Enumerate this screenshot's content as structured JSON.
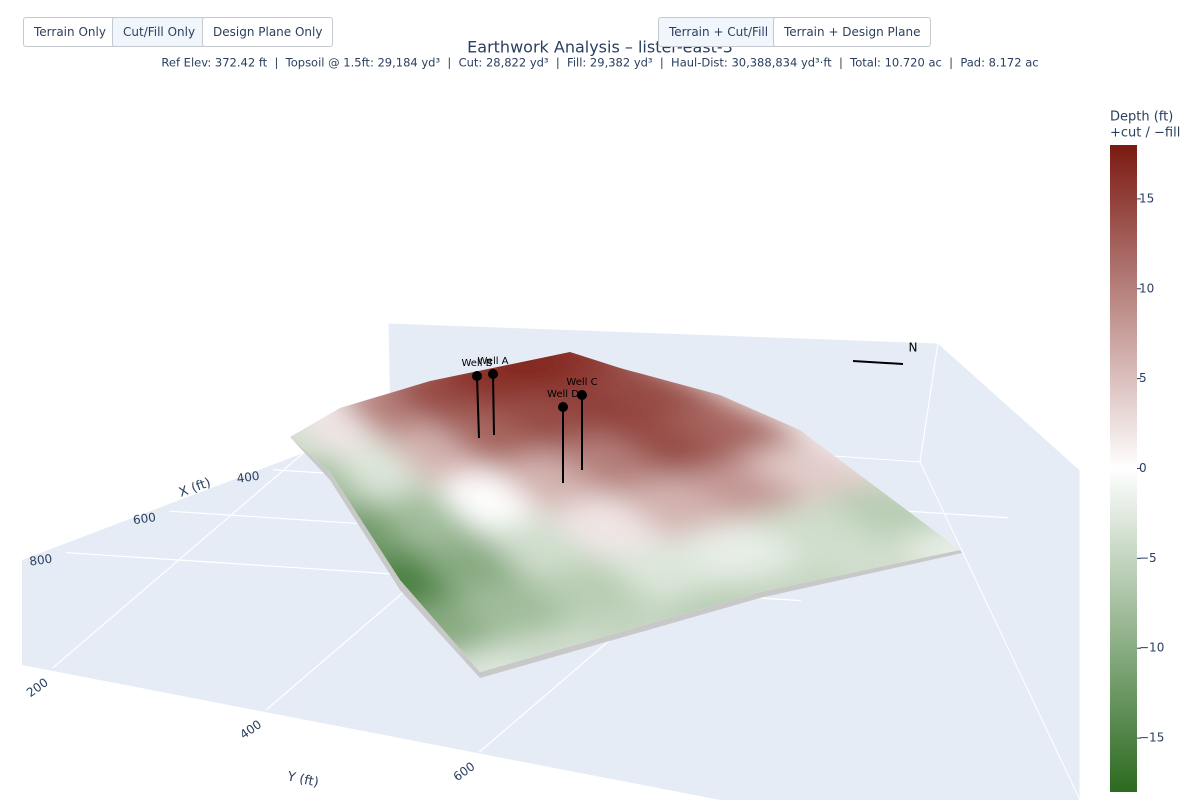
{
  "buttons": [
    {
      "label": "Terrain Only",
      "active": false
    },
    {
      "label": "Cut/Fill Only",
      "active": true
    },
    {
      "label": "Design Plane Only",
      "active": false
    },
    {
      "label": "Terrain + Cut/Fill",
      "active": true
    },
    {
      "label": "Terrain + Design Plane",
      "active": false
    }
  ],
  "chart_data": {
    "type": "surface",
    "title": "Earthwork Analysis – lister-east-3",
    "subtitle": "Ref Elev: 372.42 ft  |  Topsoil @ 1.5ft: 29,184 yd³  |  Cut: 28,822 yd³  |  Fill: 29,382 yd³  |  Haul-Dist: 30,388,834 yd³·ft  |  Total: 10.720 ac  |  Pad: 8.172 ac",
    "z": [
      [
        -4,
        2,
        10,
        14,
        16,
        17,
        16
      ],
      [
        -8,
        -3,
        6,
        12,
        14,
        15,
        14
      ],
      [
        -12,
        -8,
        0,
        6,
        10,
        14,
        12
      ],
      [
        -15,
        -10,
        -4,
        2,
        6,
        8,
        4
      ],
      [
        -10,
        -8,
        -6,
        -3,
        -2,
        -4,
        -6
      ],
      [
        -3,
        -4,
        -5,
        -6,
        -5,
        -4,
        -2
      ]
    ],
    "zlim": [
      -18,
      18
    ],
    "colorscale": [
      "#2b6a1f",
      "#ffffff",
      "#7b1a12"
    ],
    "colorbar": {
      "title": [
        "Depth (ft)",
        "+cut / −fill"
      ],
      "ticks": [
        {
          "value": -15,
          "label": "−15"
        },
        {
          "value": -10,
          "label": "−10"
        },
        {
          "value": -5,
          "label": "−5"
        },
        0,
        5,
        10,
        15
      ]
    },
    "xaxis": {
      "title": "X (ft)",
      "xlim": [
        300,
        850
      ],
      "ticks": [
        400,
        600,
        800
      ]
    },
    "yaxis": {
      "title": "Y (ft)",
      "ylim": [
        100,
        700
      ],
      "ticks": [
        200,
        400,
        600
      ]
    },
    "wells": [
      "Well B",
      "Well A",
      "Well C",
      "Well D"
    ],
    "north_label": "N"
  }
}
